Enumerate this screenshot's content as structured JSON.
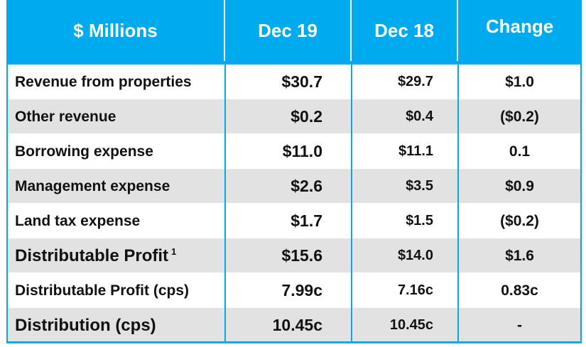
{
  "header": {
    "col0": "$ Millions",
    "col1": "Dec 19",
    "col2": "Dec 18",
    "col3": "Change"
  },
  "rows": [
    {
      "label": "Revenue from properties",
      "dec19": "$30.7",
      "dec18": "$29.7",
      "change": "$1.0"
    },
    {
      "label": "Other revenue",
      "dec19": "$0.2",
      "dec18": "$0.4",
      "change": "($0.2)"
    },
    {
      "label": "Borrowing expense",
      "dec19": "$11.0",
      "dec18": "$11.1",
      "change": "0.1"
    },
    {
      "label": "Management expense",
      "dec19": "$2.6",
      "dec18": "$3.5",
      "change": "$0.9"
    },
    {
      "label": "Land tax expense",
      "dec19": "$1.7",
      "dec18": "$1.5",
      "change": "($0.2)"
    },
    {
      "label": "Distributable Profit",
      "sup": "1",
      "dec19": "$15.6",
      "dec18": "$14.0",
      "change": "$1.6"
    },
    {
      "label": "Distributable Profit (cps)",
      "dec19": "7.99c",
      "dec18": "7.16c",
      "change": "0.83c"
    },
    {
      "label": "Distribution (cps)",
      "dec19": "10.45c",
      "dec18": "10.45c",
      "change": "-"
    }
  ],
  "colors": {
    "accent": "#00aaee",
    "row_alt": "#e2e2e2",
    "text": "#111111"
  }
}
